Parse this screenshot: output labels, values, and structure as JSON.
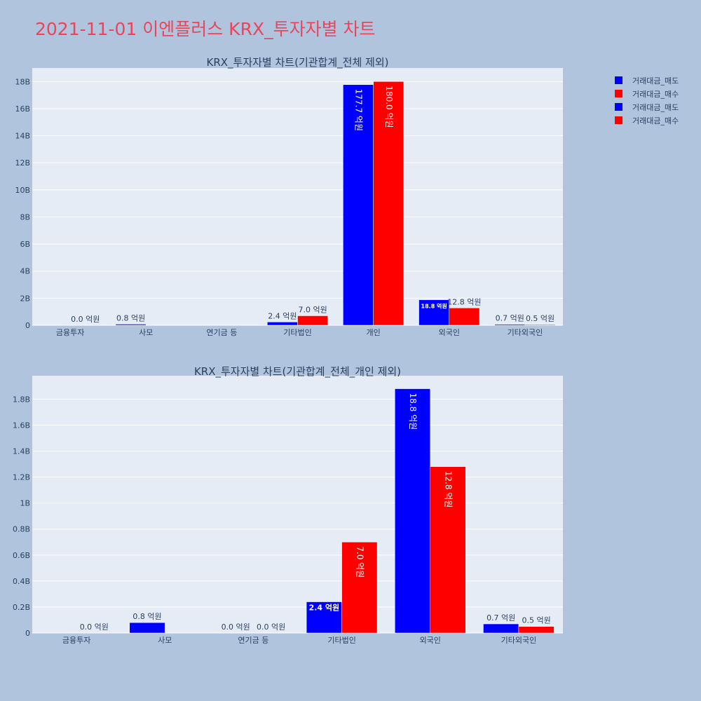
{
  "title": "2021-11-01 이엔플러스 KRX_투자자별 차트",
  "legend": [
    {
      "label": "거래대금_매도",
      "color": "#0000ff"
    },
    {
      "label": "거래대금_매수",
      "color": "#ff0000"
    },
    {
      "label": "거래대금_매도",
      "color": "#0000ff"
    },
    {
      "label": "거래대금_매수",
      "color": "#ff0000"
    }
  ],
  "chart_data": [
    {
      "type": "bar",
      "title": "KRX_투자자별 차트(기관합계_전체 제외)",
      "categories": [
        "금융투자",
        "사모",
        "연기금 등",
        "기타법인",
        "개인",
        "외국인",
        "기타외국인"
      ],
      "series": [
        {
          "name": "거래대금_매도",
          "color": "#0000ff",
          "values": [
            0,
            80000000,
            0,
            240000000,
            17770000000,
            1880000000,
            70000000
          ],
          "labels": [
            "",
            "0.8 억원",
            "",
            "2.4 억원",
            "177.7 억원",
            "18.8 억원",
            "0.7 억원"
          ]
        },
        {
          "name": "거래대금_매수",
          "color": "#ff0000",
          "values": [
            0,
            0,
            0,
            700000000,
            18000000000,
            1280000000,
            50000000
          ],
          "labels": [
            "0.0 억원",
            "",
            "",
            "7.0 억원",
            "180.0 억원",
            "12.8 억원",
            "0.5 억원"
          ]
        }
      ],
      "ylim": [
        0,
        19000000000
      ],
      "yticks": [
        0,
        2000000000,
        4000000000,
        6000000000,
        8000000000,
        10000000000,
        12000000000,
        14000000000,
        16000000000,
        18000000000
      ],
      "yticklabels": [
        "0",
        "2B",
        "4B",
        "6B",
        "8B",
        "10B",
        "12B",
        "14B",
        "16B",
        "18B"
      ],
      "grid": true
    },
    {
      "type": "bar",
      "title": "KRX_투자자별 차트(기관합계_전체_개인 제외)",
      "categories": [
        "금융투자",
        "사모",
        "연기금 등",
        "기타법인",
        "외국인",
        "기타외국인"
      ],
      "series": [
        {
          "name": "거래대금_매도",
          "color": "#0000ff",
          "values": [
            0,
            80000000,
            0,
            240000000,
            1880000000,
            70000000
          ],
          "labels": [
            "",
            "0.8 억원",
            "0.0 억원",
            "2.4 억원",
            "18.8 억원",
            "0.7 억원"
          ]
        },
        {
          "name": "거래대금_매수",
          "color": "#ff0000",
          "values": [
            0,
            0,
            0,
            700000000,
            1280000000,
            50000000
          ],
          "labels": [
            "0.0 억원",
            "",
            "0.0 억원",
            "7.0 억원",
            "12.8 억원",
            "0.5 억원"
          ]
        }
      ],
      "ylim": [
        0,
        1980000000
      ],
      "yticks": [
        0,
        200000000,
        400000000,
        600000000,
        800000000,
        1000000000,
        1200000000,
        1400000000,
        1600000000,
        1800000000
      ],
      "yticklabels": [
        "0",
        "0.2B",
        "0.4B",
        "0.6B",
        "0.8B",
        "1B",
        "1.2B",
        "1.4B",
        "1.6B",
        "1.8B"
      ],
      "grid": true
    }
  ]
}
